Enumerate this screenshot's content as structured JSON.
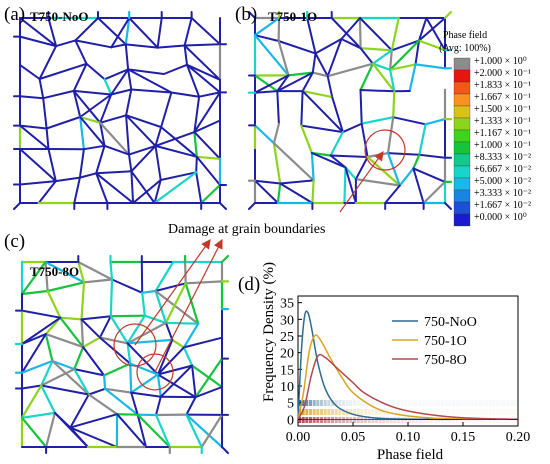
{
  "panels": [
    {
      "label": "(a)",
      "title": "T750-NoO"
    },
    {
      "label": "(b)",
      "title": "T750-1O"
    },
    {
      "label": "(c)",
      "title": "T750-8O"
    },
    {
      "label": "(d)",
      "title": ""
    }
  ],
  "colorbar": {
    "title": "Phase field",
    "subtitle": "(Avg: 100%)",
    "labels": [
      "+1.000 × 10⁰",
      "+2.000 × 10⁻¹",
      "+1.833 × 10⁻¹",
      "+1.667 × 10⁻¹",
      "+1.500 × 10⁻¹",
      "+1.333 × 10⁻¹",
      "+1.167 × 10⁻¹",
      "+1.000 × 10⁻¹",
      "+8.333 × 10⁻²",
      "+6.667 × 10⁻²",
      "+5.000 × 10⁻²",
      "+3.333 × 10⁻²",
      "+1.667 × 10⁻²",
      "+0.000 × 10⁰"
    ],
    "colors": [
      "#8c8c8c",
      "#e8150d",
      "#f5561a",
      "#f7931e",
      "#d9c21a",
      "#8fd41c",
      "#3fd41c",
      "#14c43a",
      "#13c98e",
      "#17d6c9",
      "#19b8e8",
      "#1a84e0",
      "#1a4fd6",
      "#1a1ad0"
    ]
  },
  "annotation": {
    "text": "Damage at grain boundaries"
  },
  "colors": {
    "noO": "#2e6b8f",
    "o1": "#d9a520",
    "o8": "#b5484e",
    "grain": "#1f1fa8",
    "arrow": "#c0392b"
  },
  "chart_data": {
    "type": "line",
    "title": "",
    "xlabel": "Phase field",
    "ylabel": "Frequency Density (%)",
    "xlim": [
      0,
      0.2
    ],
    "ylim": [
      -2,
      37
    ],
    "xticks": [
      "0.00",
      "0.05",
      "0.10",
      "0.15",
      "0.20"
    ],
    "yticks": [
      "0",
      "5",
      "10",
      "15",
      "20",
      "25",
      "30",
      "35"
    ],
    "legend": "top-right",
    "series": [
      {
        "name": "750-NoO",
        "x": [
          0,
          0.003,
          0.006,
          0.009,
          0.012,
          0.018,
          0.025,
          0.035,
          0.05,
          0.07,
          0.09,
          0.12,
          0.15
        ],
        "values": [
          0,
          20,
          31,
          32,
          28,
          17,
          9,
          4,
          1.5,
          0.4,
          0.1,
          0,
          0
        ]
      },
      {
        "name": "750-1O",
        "x": [
          0,
          0.005,
          0.01,
          0.015,
          0.02,
          0.03,
          0.04,
          0.05,
          0.07,
          0.09,
          0.12,
          0.15,
          0.18
        ],
        "values": [
          0,
          8,
          20,
          25,
          24,
          18,
          12.5,
          8,
          3.5,
          1.5,
          0.4,
          0.1,
          0
        ]
      },
      {
        "name": "750-8O",
        "x": [
          0,
          0.006,
          0.012,
          0.018,
          0.025,
          0.035,
          0.05,
          0.06,
          0.08,
          0.1,
          0.13,
          0.16,
          0.2
        ],
        "values": [
          0,
          4,
          13,
          19,
          18.5,
          15.5,
          11,
          8,
          4.5,
          2.5,
          1,
          0.3,
          0
        ]
      }
    ]
  }
}
